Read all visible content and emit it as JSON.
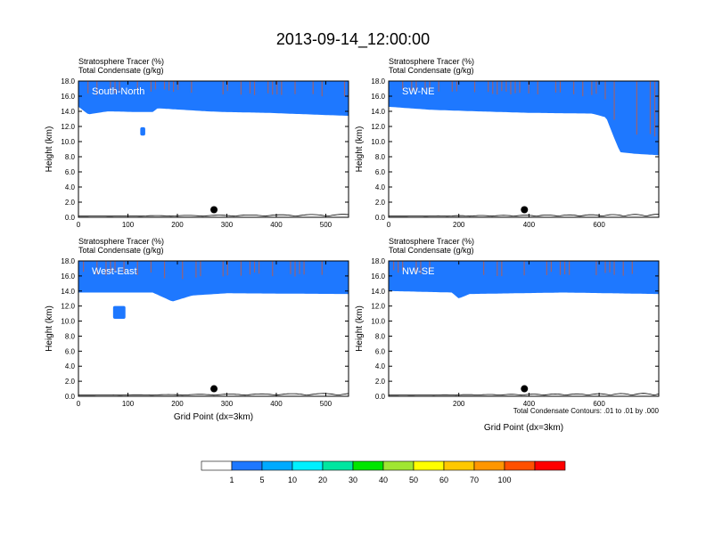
{
  "figure_title": "2013-09-14_12:00:00",
  "footnote": "Total Condensate Contours: .01 to .01 by .000",
  "colors": {
    "scale": [
      "#ffffff",
      "#1e78ff",
      "#00aaff",
      "#00f0ff",
      "#00e6a0",
      "#00e600",
      "#a0e632",
      "#ffff00",
      "#ffc800",
      "#ff9600",
      "#ff5000",
      "#ff0000"
    ],
    "contour": "#000000",
    "marker": "#000000"
  },
  "colorbar": {
    "labels": [
      "1",
      "5",
      "10",
      "20",
      "30",
      "40",
      "50",
      "60",
      "70",
      "100"
    ]
  },
  "chart_data": [
    {
      "type": "heatmap",
      "panel": "South-North",
      "title_line1": "Stratosphere Tracer   (%)",
      "title_line2": "Total Condensate   (g/kg)",
      "xlabel": "",
      "ylabel": "Height (km)",
      "xlim": [
        0,
        546
      ],
      "ylim": [
        0,
        18
      ],
      "xticks": [
        0,
        100,
        200,
        300,
        400,
        500
      ],
      "xtick_labels": [
        "0",
        "100",
        "200",
        "300",
        "400",
        "500"
      ],
      "yticks": [
        0,
        2,
        4,
        6,
        8,
        10,
        12,
        14,
        16,
        18
      ],
      "ytick_labels": [
        "0.0",
        "2.0",
        "4.0",
        "6.0",
        "8.0",
        "10.0",
        "12.0",
        "14.0",
        "16.0",
        "18.0"
      ],
      "tropopause_base": [
        [
          0,
          14.6
        ],
        [
          20,
          13.6
        ],
        [
          60,
          14.0
        ],
        [
          120,
          13.9
        ],
        [
          150,
          13.9
        ],
        [
          160,
          14.4
        ],
        [
          260,
          14.0
        ],
        [
          300,
          13.9
        ],
        [
          380,
          13.8
        ],
        [
          546,
          13.4
        ]
      ],
      "blobs": [
        {
          "x": [
            125,
            135
          ],
          "y": [
            10.8,
            11.9
          ]
        }
      ],
      "marker": {
        "x": 274,
        "y": 1.0
      }
    },
    {
      "type": "heatmap",
      "panel": "SW-NE",
      "title_line1": "Stratosphere Tracer   (%)",
      "title_line2": "Total Condensate   (g/kg)",
      "xlabel": "",
      "ylabel": "Height (km)",
      "xlim": [
        0,
        770
      ],
      "ylim": [
        0,
        18
      ],
      "xticks": [
        0,
        200,
        400,
        600
      ],
      "xtick_labels": [
        "0",
        "200",
        "400",
        "600"
      ],
      "yticks": [
        0,
        2,
        4,
        6,
        8,
        10,
        12,
        14,
        16,
        18
      ],
      "ytick_labels": [
        "0.0",
        "2.0",
        "4.0",
        "6.0",
        "8.0",
        "10.0",
        "12.0",
        "14.0",
        "16.0",
        "18.0"
      ],
      "tropopause_base": [
        [
          0,
          14.6
        ],
        [
          120,
          14.2
        ],
        [
          250,
          14.0
        ],
        [
          400,
          13.8
        ],
        [
          580,
          13.7
        ],
        [
          620,
          13.2
        ],
        [
          640,
          10.8
        ],
        [
          660,
          8.6
        ],
        [
          700,
          8.4
        ],
        [
          770,
          8.2
        ]
      ],
      "blobs": [],
      "marker": {
        "x": 387,
        "y": 1.0
      }
    },
    {
      "type": "heatmap",
      "panel": "West-East",
      "title_line1": "Stratosphere Tracer   (%)",
      "title_line2": "Total Condensate   (g/kg)",
      "xlabel": "Grid Point (dx=3km)",
      "ylabel": "Height (km)",
      "xlim": [
        0,
        546
      ],
      "ylim": [
        0,
        18
      ],
      "xticks": [
        0,
        100,
        200,
        300,
        400,
        500
      ],
      "xtick_labels": [
        "0",
        "100",
        "200",
        "300",
        "400",
        "500"
      ],
      "yticks": [
        0,
        2,
        4,
        6,
        8,
        10,
        12,
        14,
        16,
        18
      ],
      "ytick_labels": [
        "0.0",
        "2.0",
        "4.0",
        "6.0",
        "8.0",
        "10.0",
        "12.0",
        "14.0",
        "16.0",
        "18.0"
      ],
      "tropopause_base": [
        [
          0,
          13.8
        ],
        [
          150,
          13.8
        ],
        [
          190,
          12.6
        ],
        [
          230,
          13.4
        ],
        [
          300,
          13.7
        ],
        [
          546,
          13.6
        ]
      ],
      "blobs": [
        {
          "x": [
            70,
            95
          ],
          "y": [
            10.3,
            12.0
          ]
        }
      ],
      "marker": {
        "x": 274,
        "y": 1.0
      }
    },
    {
      "type": "heatmap",
      "panel": "NW-SE",
      "title_line1": "Stratosphere Tracer   (%)",
      "title_line2": "Total Condensate   (g/kg)",
      "xlabel": "Grid Point (dx=3km)",
      "ylabel": "Height (km)",
      "xlim": [
        0,
        770
      ],
      "ylim": [
        0,
        18
      ],
      "xticks": [
        200,
        400,
        600
      ],
      "xtick_labels": [
        "200",
        "400",
        "600"
      ],
      "yticks": [
        0,
        2,
        4,
        6,
        8,
        10,
        12,
        14,
        16,
        18
      ],
      "ytick_labels": [
        "0.0",
        "2.0",
        "4.0",
        "6.0",
        "8.0",
        "10.0",
        "12.0",
        "14.0",
        "16.0",
        "18.0"
      ],
      "tropopause_base": [
        [
          0,
          14.0
        ],
        [
          180,
          13.8
        ],
        [
          200,
          13.0
        ],
        [
          230,
          13.6
        ],
        [
          500,
          13.8
        ],
        [
          770,
          13.6
        ]
      ],
      "blobs": [],
      "marker": {
        "x": 387,
        "y": 1.0
      }
    }
  ]
}
